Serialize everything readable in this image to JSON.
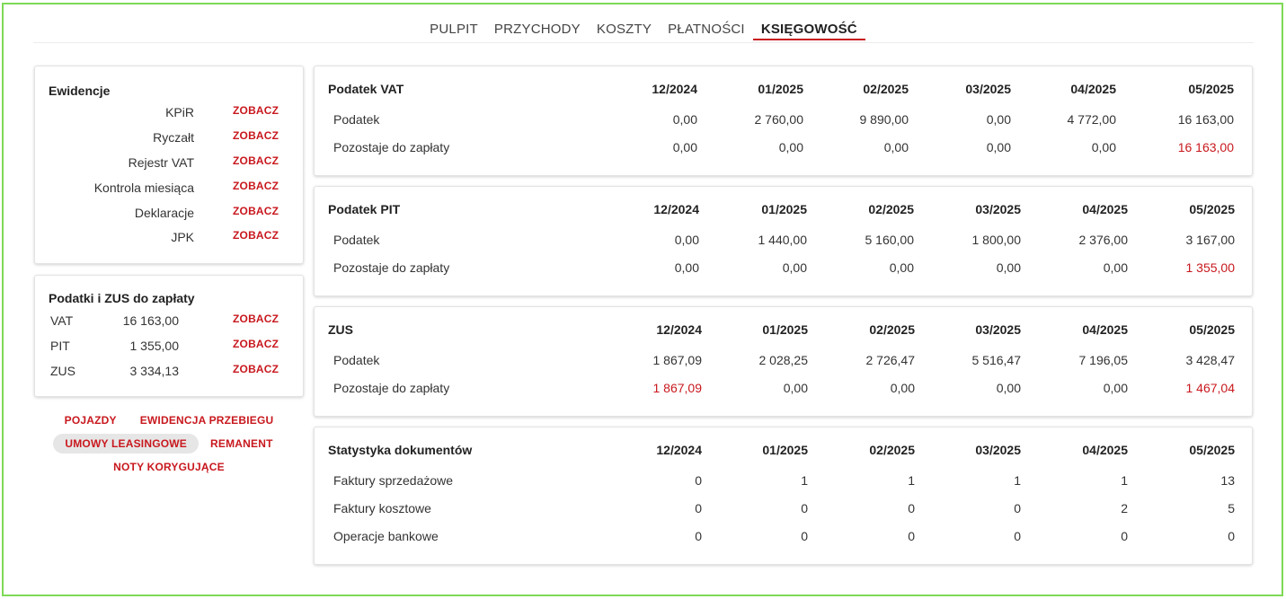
{
  "nav": {
    "items": [
      "PULPIT",
      "PRZYCHODY",
      "KOSZTY",
      "PŁATNOŚCI",
      "KSIĘGOWOŚĆ"
    ],
    "active": "KSIĘGOWOŚĆ"
  },
  "ewidencje": {
    "title": "Ewidencje",
    "items": [
      {
        "label": "KPiR",
        "link": "ZOBACZ"
      },
      {
        "label": "Ryczałt",
        "link": "ZOBACZ"
      },
      {
        "label": "Rejestr VAT",
        "link": "ZOBACZ"
      },
      {
        "label": "Kontrola miesiąca",
        "link": "ZOBACZ"
      },
      {
        "label": "Deklaracje",
        "link": "ZOBACZ"
      },
      {
        "label": "JPK",
        "link": "ZOBACZ"
      }
    ]
  },
  "podatki": {
    "title": "Podatki i ZUS do zapłaty",
    "items": [
      {
        "label": "VAT",
        "value": "16 163,00",
        "link": "ZOBACZ"
      },
      {
        "label": "PIT",
        "value": "1 355,00",
        "link": "ZOBACZ"
      },
      {
        "label": "ZUS",
        "value": "3 334,13",
        "link": "ZOBACZ"
      }
    ]
  },
  "extra_links": {
    "pojazdy": "POJAZDY",
    "ewidencja_przebiegu": "EWIDENCJA PRZEBIEGU",
    "umowy_leasingowe": "UMOWY LEASINGOWE",
    "remanent": "REMANENT",
    "noty_korygujace": "NOTY KORYGUJĄCE"
  },
  "colors": {
    "accent": "#c8181e",
    "frame": "#7ed957"
  },
  "tables": {
    "vat": {
      "title": "Podatek VAT",
      "months": [
        "12/2024",
        "01/2025",
        "02/2025",
        "03/2025",
        "04/2025",
        "05/2025"
      ],
      "rows": [
        {
          "label": "Podatek",
          "values": [
            "0,00",
            "2 760,00",
            "9 890,00",
            "0,00",
            "4 772,00",
            "16 163,00"
          ]
        },
        {
          "label": "Pozostaje do zapłaty",
          "values": [
            "0,00",
            "0,00",
            "0,00",
            "0,00",
            "0,00",
            "16 163,00"
          ]
        }
      ]
    },
    "pit": {
      "title": "Podatek PIT",
      "months": [
        "12/2024",
        "01/2025",
        "02/2025",
        "03/2025",
        "04/2025",
        "05/2025"
      ],
      "rows": [
        {
          "label": "Podatek",
          "values": [
            "0,00",
            "1 440,00",
            "5 160,00",
            "1 800,00",
            "2 376,00",
            "3 167,00"
          ]
        },
        {
          "label": "Pozostaje do zapłaty",
          "values": [
            "0,00",
            "0,00",
            "0,00",
            "0,00",
            "0,00",
            "1 355,00"
          ]
        }
      ]
    },
    "zus": {
      "title": "ZUS",
      "months": [
        "12/2024",
        "01/2025",
        "02/2025",
        "03/2025",
        "04/2025",
        "05/2025"
      ],
      "rows": [
        {
          "label": "Podatek",
          "values": [
            "1 867,09",
            "2 028,25",
            "2 726,47",
            "5 516,47",
            "7 196,05",
            "3 428,47"
          ]
        },
        {
          "label": "Pozostaje do zapłaty",
          "values": [
            "1 867,09",
            "0,00",
            "0,00",
            "0,00",
            "0,00",
            "1 467,04"
          ]
        }
      ]
    },
    "stats": {
      "title": "Statystyka dokumentów",
      "months": [
        "12/2024",
        "01/2025",
        "02/2025",
        "03/2025",
        "04/2025",
        "05/2025"
      ],
      "rows": [
        {
          "label": "Faktury sprzedażowe",
          "values": [
            "0",
            "1",
            "1",
            "1",
            "1",
            "13"
          ]
        },
        {
          "label": "Faktury kosztowe",
          "values": [
            "0",
            "0",
            "0",
            "0",
            "2",
            "5"
          ]
        },
        {
          "label": "Operacje bankowe",
          "values": [
            "0",
            "0",
            "0",
            "0",
            "0",
            "0"
          ]
        }
      ]
    }
  }
}
